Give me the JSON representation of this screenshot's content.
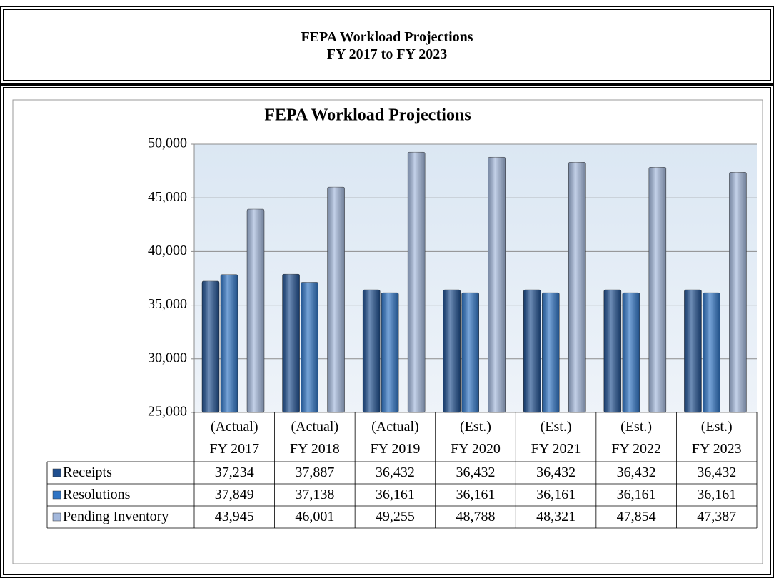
{
  "header": {
    "title": "FEPA Workload Projections",
    "subtitle": "FY 2017 to FY 2023"
  },
  "chart_data": {
    "type": "bar",
    "title": "FEPA Workload Projections",
    "categories": [
      "(Actual)\nFY 2017",
      "(Actual)\nFY 2018",
      "(Actual)\nFY 2019",
      "(Est.)\nFY 2020",
      "(Est.)\nFY 2021",
      "(Est.)\nFY 2022",
      "(Est.)\nFY 2023"
    ],
    "series": [
      {
        "name": "Receipts",
        "color": "#1f4f8f",
        "values": [
          37234,
          37887,
          36432,
          36432,
          36432,
          36432,
          36432
        ],
        "value_labels": [
          "37,234",
          "37,887",
          "36,432",
          "36,432",
          "36,432",
          "36,432",
          "36,432"
        ]
      },
      {
        "name": "Resolutions",
        "color": "#2f74c4",
        "values": [
          37849,
          37138,
          36161,
          36161,
          36161,
          36161,
          36161
        ],
        "value_labels": [
          "37,849",
          "37,138",
          "36,161",
          "36,161",
          "36,161",
          "36,161",
          "36,161"
        ]
      },
      {
        "name": "Pending Inventory",
        "color": "#a3b8dc",
        "values": [
          43945,
          46001,
          49255,
          48788,
          48321,
          47854,
          47387
        ],
        "value_labels": [
          "43,945",
          "46,001",
          "49,255",
          "48,788",
          "48,321",
          "47,854",
          "47,387"
        ]
      }
    ],
    "ylim": [
      25000,
      50000
    ],
    "yticks": [
      {
        "value": 25000,
        "label": "25,000"
      },
      {
        "value": 30000,
        "label": "30,000"
      },
      {
        "value": 35000,
        "label": "35,000"
      },
      {
        "value": 40000,
        "label": "40,000"
      },
      {
        "value": 45000,
        "label": "45,000"
      },
      {
        "value": 50000,
        "label": "50,000"
      }
    ],
    "grid": true
  }
}
